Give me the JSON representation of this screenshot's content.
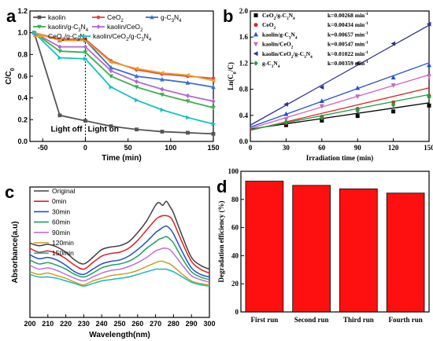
{
  "chart_data": [
    {
      "panel": "a",
      "type": "line",
      "xlabel": "Time (min)",
      "ylabel": "C/C0",
      "xlim": [
        -65,
        150
      ],
      "ylim": [
        0.0,
        1.2
      ],
      "xticks": [
        -50,
        0,
        50,
        100,
        150
      ],
      "yticks": [
        0.0,
        0.2,
        0.4,
        0.6,
        0.8,
        1.0,
        1.2
      ],
      "legend_position": "top",
      "annotations": [
        "Light off",
        "Light on"
      ],
      "x": [
        -60,
        -30,
        0,
        30,
        60,
        90,
        120,
        150
      ],
      "series": [
        {
          "name": "kaolin",
          "color": "#555555",
          "marker": "square",
          "values": [
            1.0,
            0.24,
            0.19,
            0.14,
            0.11,
            0.09,
            0.08,
            0.07
          ]
        },
        {
          "name": "CeO2",
          "color": "#e8413a",
          "marker": "circle",
          "values": [
            1.0,
            0.94,
            0.94,
            0.74,
            0.66,
            0.62,
            0.6,
            0.58
          ]
        },
        {
          "name": "g-C3N4",
          "color": "#3a6fd0",
          "marker": "triangle",
          "values": [
            1.0,
            0.93,
            0.93,
            0.68,
            0.6,
            0.57,
            0.54,
            0.5
          ]
        },
        {
          "name": "kaolin/g-C3N4",
          "color": "#3bb04d",
          "marker": "triangle-down",
          "values": [
            1.0,
            0.83,
            0.82,
            0.6,
            0.5,
            0.43,
            0.37,
            0.31
          ]
        },
        {
          "name": "kaolin/CeO2",
          "color": "#b06ad0",
          "marker": "diamond",
          "values": [
            1.0,
            0.87,
            0.87,
            0.65,
            0.55,
            0.48,
            0.42,
            0.37
          ]
        },
        {
          "name": "CeO2/g-C3N4",
          "color": "#e8a020",
          "marker": "triangle-left",
          "values": [
            1.0,
            0.93,
            0.93,
            0.73,
            0.67,
            0.63,
            0.61,
            0.56
          ]
        },
        {
          "name": "kaolin/CeO2/g-C3N4",
          "color": "#18c0c0",
          "marker": "triangle-right",
          "values": [
            1.0,
            0.77,
            0.76,
            0.5,
            0.38,
            0.29,
            0.22,
            0.16
          ]
        }
      ]
    },
    {
      "panel": "b",
      "type": "scatter",
      "xlabel": "Irradiation time (min)",
      "ylabel": "Ln(C0/C)",
      "xlim": [
        0,
        150
      ],
      "ylim": [
        0.0,
        2.0
      ],
      "xticks": [
        0,
        30,
        60,
        90,
        120,
        150
      ],
      "yticks": [
        0.0,
        0.4,
        0.8,
        1.2,
        1.6,
        2.0
      ],
      "legend_position": "top-left",
      "x": [
        30,
        60,
        90,
        120,
        150
      ],
      "series": [
        {
          "name": "CeO2/g-C3N4",
          "k_label": "k=0.00268 min-1",
          "color": "#000000",
          "marker": "square",
          "values": [
            0.25,
            0.32,
            0.39,
            0.46,
            0.55
          ],
          "fit": [
            0.19,
            0.00268
          ]
        },
        {
          "name": "CeO2",
          "k_label": "k=0.00434 min-1",
          "color": "#e02020",
          "marker": "circle",
          "values": [
            0.28,
            0.38,
            0.5,
            0.6,
            0.7
          ],
          "fit": [
            0.17,
            0.00434
          ]
        },
        {
          "name": "kaolin/g-C3N4",
          "k_label": "k=0.00657 min-1",
          "color": "#2050d0",
          "marker": "triangle",
          "values": [
            0.42,
            0.62,
            0.82,
            0.98,
            1.17
          ],
          "fit": [
            0.22,
            0.00657
          ]
        },
        {
          "name": "kaolin/CeO2",
          "k_label": "k=0.00547 min-1",
          "color": "#d060c0",
          "marker": "triangle-down",
          "values": [
            0.34,
            0.54,
            0.69,
            0.86,
            1.0
          ],
          "fit": [
            0.2,
            0.00547
          ]
        },
        {
          "name": "kaolin/CeO2/g-C3N4",
          "k_label": "k=0.01022 min-1",
          "color": "#303090",
          "marker": "triangle-left",
          "values": [
            0.57,
            0.83,
            1.2,
            1.5,
            1.8
          ],
          "fit": [
            0.25,
            0.01022
          ]
        },
        {
          "name": "g-C3N4",
          "k_label": "k=0.00359 min-1",
          "color": "#20a040",
          "marker": "diamond",
          "values": [
            0.3,
            0.36,
            0.47,
            0.56,
            0.68
          ],
          "fit": [
            0.18,
            0.00359
          ]
        }
      ]
    },
    {
      "panel": "c",
      "type": "line",
      "xlabel": "Wavelength(nm)",
      "ylabel": "Absorbance(a.u)",
      "xlim": [
        200,
        300
      ],
      "ylim": [
        0,
        1
      ],
      "xticks": [
        200,
        210,
        220,
        230,
        240,
        250,
        260,
        270,
        280,
        290,
        300
      ],
      "legend_position": "top-left",
      "x": [
        200,
        205,
        210,
        215,
        220,
        225,
        230,
        235,
        240,
        245,
        250,
        255,
        260,
        265,
        270,
        272,
        274,
        276,
        278,
        280,
        285,
        290,
        295,
        300
      ],
      "series": [
        {
          "name": "Original",
          "color": "#404040",
          "values": [
            0.57,
            0.55,
            0.56,
            0.54,
            0.5,
            0.44,
            0.41,
            0.46,
            0.52,
            0.54,
            0.55,
            0.58,
            0.65,
            0.74,
            0.86,
            0.88,
            0.86,
            0.89,
            0.85,
            0.8,
            0.62,
            0.46,
            0.4,
            0.37
          ]
        },
        {
          "name": "0min",
          "color": "#e02020",
          "values": [
            0.53,
            0.5,
            0.51,
            0.49,
            0.45,
            0.4,
            0.37,
            0.42,
            0.47,
            0.49,
            0.5,
            0.53,
            0.59,
            0.67,
            0.75,
            0.77,
            0.78,
            0.78,
            0.77,
            0.73,
            0.57,
            0.43,
            0.37,
            0.34
          ]
        },
        {
          "name": "30min",
          "color": "#2050d0",
          "values": [
            0.48,
            0.45,
            0.46,
            0.44,
            0.4,
            0.35,
            0.33,
            0.37,
            0.41,
            0.43,
            0.44,
            0.47,
            0.52,
            0.58,
            0.65,
            0.67,
            0.69,
            0.7,
            0.68,
            0.64,
            0.5,
            0.38,
            0.33,
            0.31
          ]
        },
        {
          "name": "60min",
          "color": "#20a060",
          "values": [
            0.44,
            0.41,
            0.42,
            0.4,
            0.37,
            0.33,
            0.31,
            0.34,
            0.38,
            0.4,
            0.41,
            0.43,
            0.47,
            0.53,
            0.58,
            0.6,
            0.61,
            0.62,
            0.6,
            0.57,
            0.45,
            0.35,
            0.31,
            0.29
          ]
        },
        {
          "name": "90min",
          "color": "#c070d0",
          "values": [
            0.4,
            0.37,
            0.38,
            0.36,
            0.33,
            0.3,
            0.28,
            0.31,
            0.34,
            0.36,
            0.37,
            0.39,
            0.42,
            0.46,
            0.51,
            0.52,
            0.53,
            0.53,
            0.52,
            0.49,
            0.4,
            0.32,
            0.29,
            0.27
          ]
        },
        {
          "name": "120min",
          "color": "#c8a020",
          "values": [
            0.35,
            0.33,
            0.34,
            0.32,
            0.3,
            0.27,
            0.25,
            0.28,
            0.3,
            0.32,
            0.33,
            0.34,
            0.36,
            0.39,
            0.42,
            0.43,
            0.43,
            0.42,
            0.41,
            0.39,
            0.33,
            0.28,
            0.26,
            0.25
          ]
        },
        {
          "name": "150min",
          "color": "#18b8c0",
          "values": [
            0.33,
            0.31,
            0.31,
            0.3,
            0.28,
            0.26,
            0.24,
            0.26,
            0.28,
            0.29,
            0.3,
            0.31,
            0.33,
            0.35,
            0.37,
            0.37,
            0.37,
            0.37,
            0.36,
            0.35,
            0.31,
            0.27,
            0.25,
            0.24
          ]
        }
      ]
    },
    {
      "panel": "d",
      "type": "bar",
      "ylabel": "Degradation efficiency (%)",
      "ylim": [
        0,
        100
      ],
      "yticks": [
        0,
        20,
        40,
        60,
        80,
        100
      ],
      "categories": [
        "First run",
        "Second run",
        "Third run",
        "Fourth run"
      ],
      "values": [
        93,
        90,
        87.5,
        84.5
      ],
      "bar_color": "#ff1010"
    }
  ],
  "panel_labels": [
    "a",
    "b",
    "c",
    "d"
  ]
}
